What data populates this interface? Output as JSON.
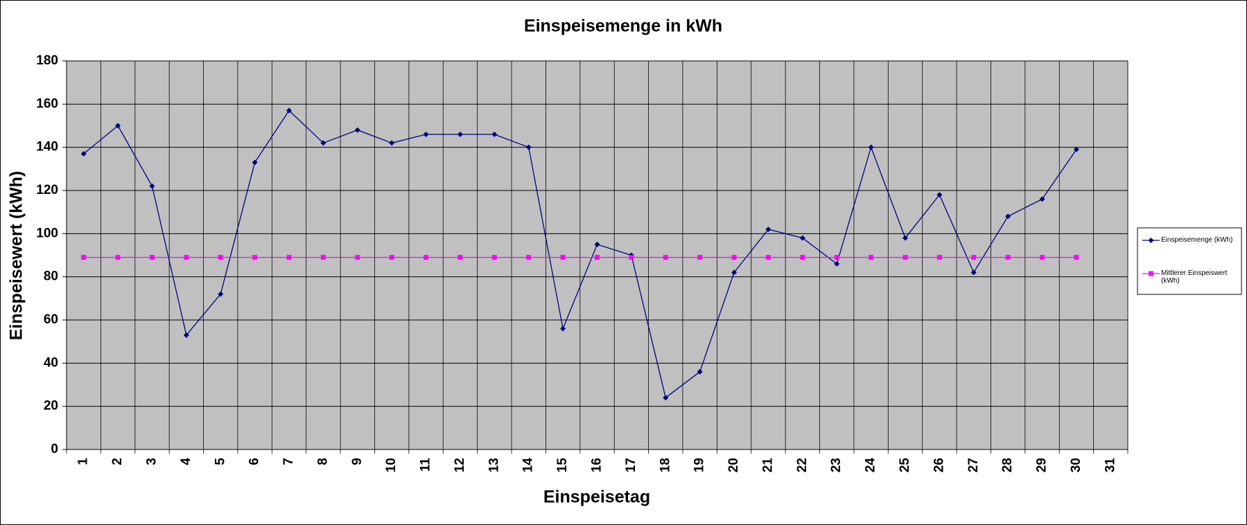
{
  "chart_data": {
    "type": "line",
    "title": "Einspeisemenge in kWh",
    "x_label": "Einspeisetag",
    "y_label": "Einspeisewert  (kWh)",
    "categories": [
      "1",
      "2",
      "3",
      "4",
      "5",
      "6",
      "7",
      "8",
      "9",
      "10",
      "11",
      "12",
      "13",
      "14",
      "15",
      "16",
      "17",
      "18",
      "19",
      "20",
      "21",
      "22",
      "23",
      "24",
      "25",
      "26",
      "27",
      "28",
      "29",
      "30",
      "31"
    ],
    "series": [
      {
        "name": "Einspeisemenge (kWh)",
        "color": "#000080",
        "marker": "diamond",
        "values": [
          137,
          150,
          122,
          53,
          72,
          133,
          157,
          142,
          148,
          142,
          146,
          146,
          146,
          140,
          56,
          95,
          90,
          24,
          36,
          82,
          102,
          98,
          86,
          140,
          98,
          118,
          82,
          108,
          116,
          139,
          null
        ]
      },
      {
        "name": "Mittlerer Einspeiswert (kWh)",
        "color": "#ff00ff",
        "marker": "square",
        "values": [
          89,
          89,
          89,
          89,
          89,
          89,
          89,
          89,
          89,
          89,
          89,
          89,
          89,
          89,
          89,
          89,
          89,
          89,
          89,
          89,
          89,
          89,
          89,
          89,
          89,
          89,
          89,
          89,
          89,
          89,
          null
        ]
      }
    ],
    "ylim": [
      0,
      180
    ],
    "yticks": [
      0,
      20,
      40,
      60,
      80,
      100,
      120,
      140,
      160,
      180
    ],
    "grid": true,
    "legend": "right"
  }
}
